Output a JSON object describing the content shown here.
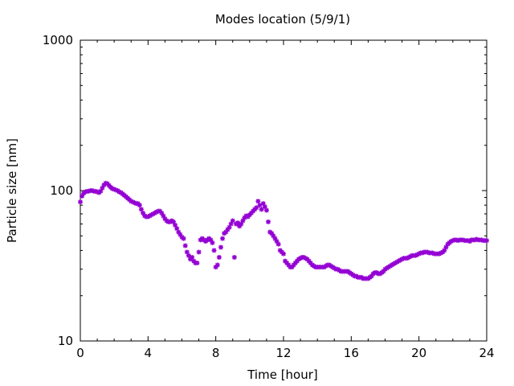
{
  "chart_data": {
    "type": "scatter",
    "title": "Modes location (5/9/1)",
    "xlabel": "Time [hour]",
    "ylabel": "Particle size [nm]",
    "xlim": [
      0,
      24
    ],
    "ylim": [
      10,
      1000
    ],
    "yscale": "log",
    "grid": false,
    "legend": "none",
    "marker": "star",
    "color": "#9400d3",
    "x_ticks": [
      0,
      4,
      8,
      12,
      16,
      20,
      24
    ],
    "x_tick_labels": [
      "0",
      "4",
      "8",
      "12",
      "16",
      "20",
      "24"
    ],
    "y_ticks": [
      10,
      100,
      1000
    ],
    "y_tick_labels": [
      "10",
      "100",
      "1000"
    ],
    "points": [
      [
        0.0,
        84
      ],
      [
        0.1,
        92
      ],
      [
        0.2,
        96
      ],
      [
        0.3,
        98
      ],
      [
        0.4,
        99
      ],
      [
        0.5,
        99
      ],
      [
        0.6,
        100
      ],
      [
        0.7,
        100
      ],
      [
        0.8,
        99
      ],
      [
        0.9,
        99
      ],
      [
        1.0,
        98
      ],
      [
        1.1,
        97
      ],
      [
        1.2,
        99
      ],
      [
        1.3,
        104
      ],
      [
        1.4,
        109
      ],
      [
        1.5,
        112
      ],
      [
        1.6,
        111
      ],
      [
        1.7,
        108
      ],
      [
        1.8,
        105
      ],
      [
        1.9,
        103
      ],
      [
        2.0,
        102
      ],
      [
        2.1,
        101
      ],
      [
        2.2,
        100
      ],
      [
        2.3,
        98
      ],
      [
        2.4,
        97
      ],
      [
        2.5,
        95
      ],
      [
        2.6,
        93
      ],
      [
        2.7,
        91
      ],
      [
        2.8,
        89
      ],
      [
        2.9,
        87
      ],
      [
        3.0,
        85
      ],
      [
        3.1,
        84
      ],
      [
        3.2,
        83
      ],
      [
        3.3,
        82
      ],
      [
        3.4,
        82
      ],
      [
        3.5,
        80
      ],
      [
        3.6,
        75
      ],
      [
        3.7,
        71
      ],
      [
        3.8,
        68
      ],
      [
        3.9,
        67
      ],
      [
        4.0,
        67
      ],
      [
        4.1,
        68
      ],
      [
        4.2,
        69
      ],
      [
        4.3,
        70
      ],
      [
        4.4,
        71
      ],
      [
        4.5,
        72
      ],
      [
        4.6,
        73
      ],
      [
        4.7,
        73
      ],
      [
        4.8,
        71
      ],
      [
        4.9,
        68
      ],
      [
        5.0,
        65
      ],
      [
        5.1,
        63
      ],
      [
        5.2,
        62
      ],
      [
        5.3,
        62
      ],
      [
        5.4,
        63
      ],
      [
        5.5,
        62
      ],
      [
        5.6,
        59
      ],
      [
        5.7,
        56
      ],
      [
        5.8,
        53
      ],
      [
        5.9,
        51
      ],
      [
        6.0,
        49
      ],
      [
        6.1,
        48
      ],
      [
        6.2,
        43
      ],
      [
        6.3,
        39
      ],
      [
        6.4,
        37
      ],
      [
        6.5,
        35
      ],
      [
        6.6,
        36
      ],
      [
        6.7,
        34
      ],
      [
        6.8,
        33
      ],
      [
        6.9,
        33
      ],
      [
        7.0,
        39
      ],
      [
        7.1,
        47
      ],
      [
        7.2,
        48
      ],
      [
        7.3,
        47
      ],
      [
        7.4,
        46
      ],
      [
        7.5,
        47
      ],
      [
        7.6,
        48
      ],
      [
        7.7,
        47
      ],
      [
        7.8,
        45
      ],
      [
        7.9,
        40
      ],
      [
        8.0,
        31
      ],
      [
        8.1,
        32
      ],
      [
        8.2,
        36
      ],
      [
        8.3,
        42
      ],
      [
        8.4,
        48
      ],
      [
        8.5,
        52
      ],
      [
        8.6,
        53
      ],
      [
        8.7,
        55
      ],
      [
        8.8,
        57
      ],
      [
        8.9,
        60
      ],
      [
        9.0,
        63
      ],
      [
        9.1,
        36
      ],
      [
        9.2,
        60
      ],
      [
        9.3,
        61
      ],
      [
        9.4,
        58
      ],
      [
        9.5,
        60
      ],
      [
        9.6,
        63
      ],
      [
        9.7,
        66
      ],
      [
        9.8,
        68
      ],
      [
        9.9,
        67
      ],
      [
        10.0,
        69
      ],
      [
        10.1,
        71
      ],
      [
        10.2,
        73
      ],
      [
        10.3,
        75
      ],
      [
        10.4,
        77
      ],
      [
        10.5,
        85
      ],
      [
        10.6,
        80
      ],
      [
        10.7,
        75
      ],
      [
        10.8,
        82
      ],
      [
        10.9,
        78
      ],
      [
        11.0,
        74
      ],
      [
        11.1,
        62
      ],
      [
        11.2,
        53
      ],
      [
        11.3,
        52
      ],
      [
        11.4,
        50
      ],
      [
        11.5,
        48
      ],
      [
        11.6,
        46
      ],
      [
        11.7,
        44
      ],
      [
        11.8,
        40
      ],
      [
        11.9,
        39
      ],
      [
        12.0,
        38
      ],
      [
        12.1,
        34
      ],
      [
        12.2,
        33
      ],
      [
        12.3,
        32
      ],
      [
        12.4,
        31
      ],
      [
        12.5,
        31
      ],
      [
        12.6,
        32
      ],
      [
        12.7,
        33
      ],
      [
        12.8,
        34
      ],
      [
        12.9,
        35
      ],
      [
        13.0,
        35.5
      ],
      [
        13.1,
        36
      ],
      [
        13.2,
        36
      ],
      [
        13.3,
        35.5
      ],
      [
        13.4,
        35
      ],
      [
        13.5,
        34
      ],
      [
        13.6,
        33
      ],
      [
        13.7,
        32
      ],
      [
        13.8,
        31.5
      ],
      [
        13.9,
        31
      ],
      [
        14.0,
        31
      ],
      [
        14.1,
        31
      ],
      [
        14.2,
        31
      ],
      [
        14.3,
        31
      ],
      [
        14.4,
        31
      ],
      [
        14.5,
        31.5
      ],
      [
        14.6,
        32
      ],
      [
        14.7,
        32
      ],
      [
        14.8,
        31.5
      ],
      [
        14.9,
        31
      ],
      [
        15.0,
        30.5
      ],
      [
        15.1,
        30
      ],
      [
        15.2,
        30
      ],
      [
        15.3,
        29.5
      ],
      [
        15.4,
        29
      ],
      [
        15.5,
        29
      ],
      [
        15.6,
        29
      ],
      [
        15.7,
        29
      ],
      [
        15.8,
        29
      ],
      [
        15.9,
        28.5
      ],
      [
        16.0,
        28
      ],
      [
        16.1,
        27.5
      ],
      [
        16.2,
        27
      ],
      [
        16.3,
        27
      ],
      [
        16.4,
        26.5
      ],
      [
        16.5,
        26.5
      ],
      [
        16.6,
        26.5
      ],
      [
        16.7,
        26
      ],
      [
        16.8,
        26
      ],
      [
        16.9,
        26
      ],
      [
        17.0,
        26
      ],
      [
        17.1,
        26.5
      ],
      [
        17.2,
        27
      ],
      [
        17.3,
        28
      ],
      [
        17.4,
        28.5
      ],
      [
        17.5,
        28.5
      ],
      [
        17.6,
        28
      ],
      [
        17.7,
        28
      ],
      [
        17.8,
        28.5
      ],
      [
        17.9,
        29
      ],
      [
        18.0,
        30
      ],
      [
        18.1,
        30.5
      ],
      [
        18.2,
        31
      ],
      [
        18.3,
        31.5
      ],
      [
        18.4,
        32
      ],
      [
        18.5,
        32.5
      ],
      [
        18.6,
        33
      ],
      [
        18.7,
        33.5
      ],
      [
        18.8,
        34
      ],
      [
        18.9,
        34.5
      ],
      [
        19.0,
        35
      ],
      [
        19.1,
        35.5
      ],
      [
        19.2,
        35.5
      ],
      [
        19.3,
        35.5
      ],
      [
        19.4,
        36
      ],
      [
        19.5,
        36.5
      ],
      [
        19.6,
        37
      ],
      [
        19.7,
        37
      ],
      [
        19.8,
        37
      ],
      [
        19.9,
        37.5
      ],
      [
        20.0,
        38
      ],
      [
        20.1,
        38.5
      ],
      [
        20.2,
        38.5
      ],
      [
        20.3,
        39
      ],
      [
        20.4,
        39
      ],
      [
        20.5,
        39
      ],
      [
        20.6,
        38.5
      ],
      [
        20.7,
        38.5
      ],
      [
        20.8,
        38.5
      ],
      [
        20.9,
        38
      ],
      [
        21.0,
        38
      ],
      [
        21.1,
        38
      ],
      [
        21.2,
        38
      ],
      [
        21.3,
        38.5
      ],
      [
        21.4,
        39
      ],
      [
        21.5,
        40
      ],
      [
        21.6,
        42
      ],
      [
        21.7,
        44
      ],
      [
        21.8,
        45
      ],
      [
        21.9,
        46
      ],
      [
        22.0,
        46.5
      ],
      [
        22.1,
        47
      ],
      [
        22.2,
        47
      ],
      [
        22.3,
        46.5
      ],
      [
        22.4,
        47
      ],
      [
        22.5,
        47
      ],
      [
        22.6,
        47
      ],
      [
        22.7,
        46.5
      ],
      [
        22.8,
        46.5
      ],
      [
        22.9,
        46.5
      ],
      [
        23.0,
        46
      ],
      [
        23.1,
        47
      ],
      [
        23.2,
        47
      ],
      [
        23.3,
        47
      ],
      [
        23.4,
        47.5
      ],
      [
        23.5,
        47
      ],
      [
        23.6,
        47
      ],
      [
        23.7,
        47
      ],
      [
        23.8,
        46.5
      ],
      [
        23.9,
        46.5
      ],
      [
        24.0,
        46.5
      ]
    ]
  }
}
